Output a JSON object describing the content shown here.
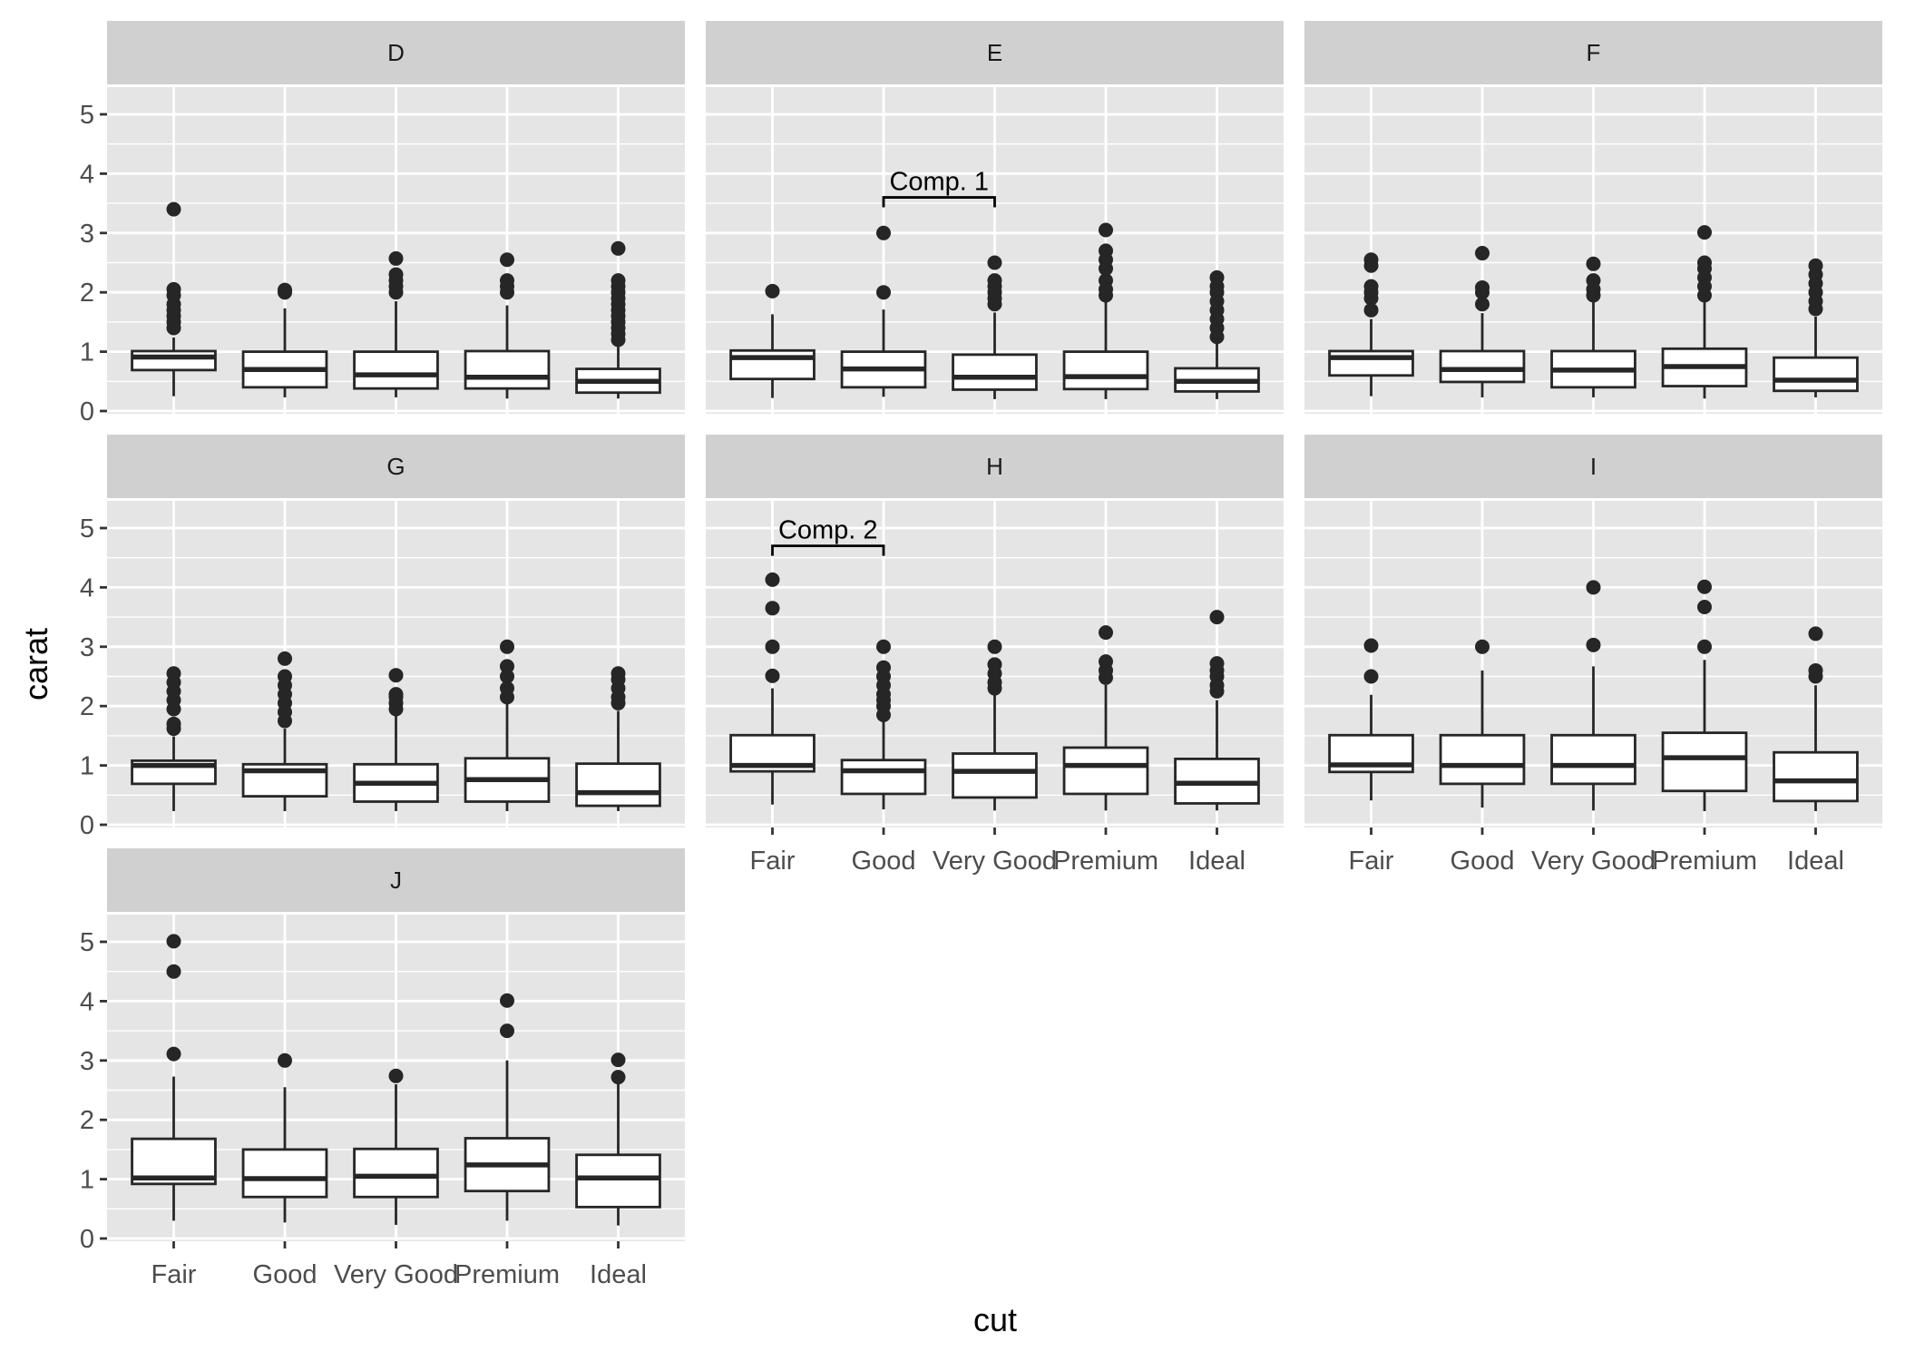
{
  "chart_data": {
    "type": "boxplot",
    "facet_by": "color",
    "xlabel": "cut",
    "ylabel": "carat",
    "ylim": [
      0,
      5.5
    ],
    "yticks": [
      0,
      1,
      2,
      3,
      4,
      5
    ],
    "categories": [
      "Fair",
      "Good",
      "Very Good",
      "Premium",
      "Ideal"
    ],
    "grid": true,
    "colors": {
      "panel_bg": "#e5e5e5",
      "strip_bg": "#d0d0d0",
      "grid": "#ffffff",
      "box_line": "#262626",
      "box_fill": "#ffffff"
    },
    "facets": [
      {
        "label": "D",
        "boxes": [
          {
            "cut": "Fair",
            "lower": 0.25,
            "q1": 0.69,
            "median": 0.91,
            "q3": 1.01,
            "upper": 1.24,
            "outliers": [
              1.4,
              1.5,
              1.6,
              1.7,
              1.8,
              1.95,
              2.05,
              3.4
            ]
          },
          {
            "cut": "Good",
            "lower": 0.23,
            "q1": 0.4,
            "median": 0.7,
            "q3": 1.0,
            "upper": 1.73,
            "outliers": [
              2.0,
              2.04
            ]
          },
          {
            "cut": "Very Good",
            "lower": 0.23,
            "q1": 0.38,
            "median": 0.61,
            "q3": 1.0,
            "upper": 1.85,
            "outliers": [
              2.0,
              2.1,
              2.2,
              2.3,
              2.57
            ]
          },
          {
            "cut": "Premium",
            "lower": 0.21,
            "q1": 0.38,
            "median": 0.57,
            "q3": 1.01,
            "upper": 1.78,
            "outliers": [
              2.0,
              2.1,
              2.2,
              2.55
            ]
          },
          {
            "cut": "Ideal",
            "lower": 0.21,
            "q1": 0.31,
            "median": 0.5,
            "q3": 0.71,
            "upper": 1.14,
            "outliers": [
              1.2,
              1.3,
              1.4,
              1.5,
              1.6,
              1.7,
              1.8,
              1.9,
              2.0,
              2.1,
              2.2,
              2.74
            ]
          }
        ]
      },
      {
        "label": "E",
        "boxes": [
          {
            "cut": "Fair",
            "lower": 0.22,
            "q1": 0.54,
            "median": 0.9,
            "q3": 1.02,
            "upper": 1.63,
            "outliers": [
              2.02
            ]
          },
          {
            "cut": "Good",
            "lower": 0.24,
            "q1": 0.4,
            "median": 0.71,
            "q3": 1.0,
            "upper": 1.71,
            "outliers": [
              2.0,
              3.0
            ]
          },
          {
            "cut": "Very Good",
            "lower": 0.2,
            "q1": 0.36,
            "median": 0.57,
            "q3": 0.95,
            "upper": 1.66,
            "outliers": [
              1.8,
              1.9,
              2.0,
              2.1,
              2.2,
              2.5
            ]
          },
          {
            "cut": "Premium",
            "lower": 0.2,
            "q1": 0.37,
            "median": 0.58,
            "q3": 1.0,
            "upper": 1.86,
            "outliers": [
              1.95,
              2.05,
              2.2,
              2.4,
              2.55,
              2.7,
              3.05
            ]
          },
          {
            "cut": "Ideal",
            "lower": 0.2,
            "q1": 0.33,
            "median": 0.5,
            "q3": 0.72,
            "upper": 1.18,
            "outliers": [
              1.25,
              1.4,
              1.55,
              1.7,
              1.85,
              2.0,
              2.1,
              2.25
            ]
          }
        ]
      },
      {
        "label": "F",
        "boxes": [
          {
            "cut": "Fair",
            "lower": 0.25,
            "q1": 0.6,
            "median": 0.9,
            "q3": 1.01,
            "upper": 1.55,
            "outliers": [
              1.7,
              1.9,
              2.0,
              2.1,
              2.45,
              2.55
            ]
          },
          {
            "cut": "Good",
            "lower": 0.23,
            "q1": 0.49,
            "median": 0.7,
            "q3": 1.01,
            "upper": 1.65,
            "outliers": [
              1.8,
              2.0,
              2.08,
              2.66
            ]
          },
          {
            "cut": "Very Good",
            "lower": 0.23,
            "q1": 0.4,
            "median": 0.69,
            "q3": 1.01,
            "upper": 1.86,
            "outliers": [
              1.95,
              2.05,
              2.2,
              2.48
            ]
          },
          {
            "cut": "Premium",
            "lower": 0.21,
            "q1": 0.42,
            "median": 0.75,
            "q3": 1.05,
            "upper": 1.83,
            "outliers": [
              1.95,
              2.1,
              2.25,
              2.4,
              2.5,
              3.01
            ]
          },
          {
            "cut": "Ideal",
            "lower": 0.23,
            "q1": 0.34,
            "median": 0.52,
            "q3": 0.9,
            "upper": 1.59,
            "outliers": [
              1.72,
              1.85,
              2.0,
              2.15,
              2.3,
              2.45
            ]
          }
        ]
      },
      {
        "label": "G",
        "boxes": [
          {
            "cut": "Fair",
            "lower": 0.23,
            "q1": 0.69,
            "median": 1.0,
            "q3": 1.08,
            "upper": 1.49,
            "outliers": [
              1.62,
              1.7,
              1.95,
              2.1,
              2.25,
              2.4,
              2.55
            ]
          },
          {
            "cut": "Good",
            "lower": 0.23,
            "q1": 0.48,
            "median": 0.91,
            "q3": 1.02,
            "upper": 1.62,
            "outliers": [
              1.75,
              1.9,
              2.05,
              2.2,
              2.35,
              2.5,
              2.8
            ]
          },
          {
            "cut": "Very Good",
            "lower": 0.23,
            "q1": 0.39,
            "median": 0.7,
            "q3": 1.02,
            "upper": 1.86,
            "outliers": [
              1.95,
              2.05,
              2.15,
              2.2,
              2.52
            ]
          },
          {
            "cut": "Premium",
            "lower": 0.23,
            "q1": 0.39,
            "median": 0.76,
            "q3": 1.12,
            "upper": 2.06,
            "outliers": [
              2.15,
              2.3,
              2.5,
              2.67,
              3.0
            ]
          },
          {
            "cut": "Ideal",
            "lower": 0.23,
            "q1": 0.32,
            "median": 0.54,
            "q3": 1.03,
            "upper": 1.92,
            "outliers": [
              2.05,
              2.15,
              2.3,
              2.45,
              2.55
            ]
          }
        ]
      },
      {
        "label": "H",
        "boxes": [
          {
            "cut": "Fair",
            "lower": 0.34,
            "q1": 0.9,
            "median": 1.0,
            "q3": 1.51,
            "upper": 2.3,
            "outliers": [
              2.51,
              3.0,
              3.65,
              4.13
            ]
          },
          {
            "cut": "Good",
            "lower": 0.26,
            "q1": 0.52,
            "median": 0.91,
            "q3": 1.09,
            "upper": 1.74,
            "outliers": [
              1.85,
              2.0,
              2.1,
              2.2,
              2.35,
              2.5,
              2.65,
              3.0
            ]
          },
          {
            "cut": "Very Good",
            "lower": 0.24,
            "q1": 0.46,
            "median": 0.9,
            "q3": 1.2,
            "upper": 2.19,
            "outliers": [
              2.3,
              2.4,
              2.55,
              2.7,
              3.0
            ]
          },
          {
            "cut": "Premium",
            "lower": 0.24,
            "q1": 0.52,
            "median": 1.0,
            "q3": 1.3,
            "upper": 2.36,
            "outliers": [
              2.48,
              2.6,
              2.75,
              3.24
            ]
          },
          {
            "cut": "Ideal",
            "lower": 0.24,
            "q1": 0.36,
            "median": 0.7,
            "q3": 1.11,
            "upper": 2.1,
            "outliers": [
              2.25,
              2.35,
              2.5,
              2.6,
              2.72,
              3.5
            ]
          }
        ]
      },
      {
        "label": "I",
        "boxes": [
          {
            "cut": "Fair",
            "lower": 0.41,
            "q1": 0.89,
            "median": 1.01,
            "q3": 1.51,
            "upper": 2.19,
            "outliers": [
              2.5,
              3.02
            ]
          },
          {
            "cut": "Good",
            "lower": 0.29,
            "q1": 0.69,
            "median": 1.0,
            "q3": 1.51,
            "upper": 2.6,
            "outliers": [
              3.0
            ]
          },
          {
            "cut": "Very Good",
            "lower": 0.24,
            "q1": 0.69,
            "median": 1.0,
            "q3": 1.51,
            "upper": 2.67,
            "outliers": [
              3.03,
              4.0
            ]
          },
          {
            "cut": "Premium",
            "lower": 0.23,
            "q1": 0.57,
            "median": 1.13,
            "q3": 1.55,
            "upper": 2.78,
            "outliers": [
              3.0,
              3.67,
              4.01
            ]
          },
          {
            "cut": "Ideal",
            "lower": 0.23,
            "q1": 0.4,
            "median": 0.74,
            "q3": 1.22,
            "upper": 2.35,
            "outliers": [
              2.5,
              2.6,
              3.22
            ]
          }
        ]
      },
      {
        "label": "J",
        "boxes": [
          {
            "cut": "Fair",
            "lower": 0.3,
            "q1": 0.92,
            "median": 1.02,
            "q3": 1.68,
            "upper": 2.73,
            "outliers": [
              3.11,
              4.5,
              5.01
            ]
          },
          {
            "cut": "Good",
            "lower": 0.27,
            "q1": 0.7,
            "median": 1.01,
            "q3": 1.5,
            "upper": 2.55,
            "outliers": [
              3.0
            ]
          },
          {
            "cut": "Very Good",
            "lower": 0.23,
            "q1": 0.7,
            "median": 1.05,
            "q3": 1.51,
            "upper": 2.6,
            "outliers": [
              2.74
            ]
          },
          {
            "cut": "Premium",
            "lower": 0.3,
            "q1": 0.8,
            "median": 1.24,
            "q3": 1.69,
            "upper": 3.0,
            "outliers": [
              3.5,
              4.01
            ]
          },
          {
            "cut": "Ideal",
            "lower": 0.22,
            "q1": 0.53,
            "median": 1.02,
            "q3": 1.41,
            "upper": 2.6,
            "outliers": [
              2.72,
              3.01
            ]
          }
        ]
      }
    ],
    "annotations": [
      {
        "label": "Comp. 1",
        "facet": "E",
        "from": "Good",
        "to": "Very Good",
        "y": 3.6
      },
      {
        "label": "Comp. 2",
        "facet": "H",
        "from": "Fair",
        "to": "Good",
        "y": 4.7
      }
    ]
  }
}
